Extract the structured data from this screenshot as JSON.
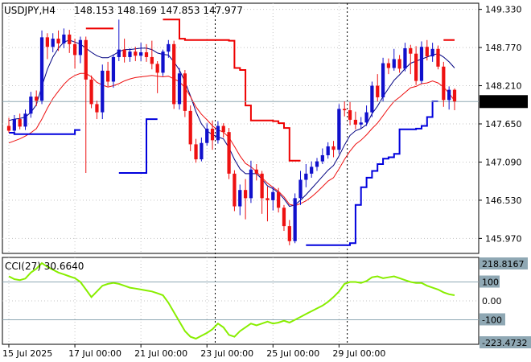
{
  "header": {
    "symbol": "USDJPY,H4",
    "ohlc": "148.153 148.169 147.853 147.977"
  },
  "indicator": {
    "label": "CCI(27) 30.6640"
  },
  "colors": {
    "bull": "#1010cc",
    "bear": "#ee1111",
    "ma_slow": "#000080",
    "ma_fast": "#ee1111",
    "stop_up": "#0000dd",
    "stop_down": "#ee0000",
    "cci": "#88ee00",
    "grid": "#c4c4c4",
    "level": "#8fa8b4",
    "current_price": "#000000"
  },
  "chart_data": [
    {
      "type": "candlestick",
      "symbol": "USDJPY",
      "timeframe": "H4",
      "ylim": [
        145.75,
        149.42
      ],
      "yticks": [
        "149.330",
        "148.770",
        "148.210",
        "147.650",
        "147.090",
        "146.530",
        "145.970"
      ],
      "xticks": [
        "15 Jul 2025",
        "17 Jul 00:00",
        "21 Jul 00:00",
        "23 Jul 00:00",
        "25 Jul 00:00",
        "29 Jul 00:00"
      ],
      "current_price": "147.977",
      "candles": [
        [
          147.62,
          147.55,
          147.74,
          147.52
        ],
        [
          147.55,
          147.72,
          147.78,
          147.5
        ],
        [
          147.72,
          147.61,
          147.8,
          147.57
        ],
        [
          147.61,
          147.8,
          147.86,
          147.56
        ],
        [
          147.8,
          148.05,
          148.12,
          147.74
        ],
        [
          148.05,
          147.99,
          148.14,
          147.91
        ],
        [
          147.99,
          148.92,
          149.02,
          147.94
        ],
        [
          148.92,
          148.78,
          148.98,
          148.6
        ],
        [
          148.78,
          148.9,
          148.98,
          148.7
        ],
        [
          148.9,
          148.83,
          149.02,
          148.72
        ],
        [
          148.83,
          148.96,
          149.05,
          148.76
        ],
        [
          148.96,
          148.82,
          149.03,
          148.69
        ],
        [
          148.82,
          148.66,
          148.9,
          148.46
        ],
        [
          148.66,
          148.88,
          148.93,
          148.54
        ],
        [
          148.88,
          148.3,
          148.93,
          146.93
        ],
        [
          148.3,
          147.94,
          148.36,
          147.88
        ],
        [
          147.94,
          147.82,
          147.99,
          147.72
        ],
        [
          147.82,
          148.43,
          148.52,
          147.72
        ],
        [
          148.43,
          148.27,
          148.56,
          148.2
        ],
        [
          148.27,
          148.63,
          148.67,
          148.18
        ],
        [
          148.63,
          148.74,
          149.18,
          148.57
        ],
        [
          148.74,
          148.63,
          148.9,
          148.55
        ],
        [
          148.63,
          148.71,
          148.76,
          148.56
        ],
        [
          148.71,
          148.65,
          148.78,
          148.57
        ],
        [
          148.65,
          148.7,
          148.84,
          148.57
        ],
        [
          148.7,
          148.63,
          148.82,
          148.56
        ],
        [
          148.63,
          148.53,
          148.87,
          148.45
        ],
        [
          148.53,
          148.4,
          148.57,
          148.1
        ],
        [
          148.4,
          148.71,
          148.74,
          148.35
        ],
        [
          148.71,
          148.82,
          148.88,
          148.62
        ],
        [
          148.82,
          147.94,
          148.87,
          147.87
        ],
        [
          147.94,
          148.39,
          148.47,
          147.86
        ],
        [
          148.39,
          147.84,
          148.44,
          147.75
        ],
        [
          147.84,
          147.35,
          147.92,
          147.25
        ],
        [
          147.35,
          147.13,
          147.43,
          147.08
        ],
        [
          147.13,
          147.37,
          147.45,
          147.1
        ],
        [
          147.37,
          147.58,
          147.66,
          147.33
        ],
        [
          147.58,
          147.41,
          147.7,
          147.27
        ],
        [
          147.41,
          147.62,
          147.69,
          147.36
        ],
        [
          147.62,
          147.53,
          147.66,
          147.45
        ],
        [
          147.53,
          146.92,
          147.59,
          146.84
        ],
        [
          146.92,
          146.44,
          146.97,
          146.37
        ],
        [
          146.44,
          146.68,
          146.76,
          146.31
        ],
        [
          146.68,
          146.56,
          146.84,
          146.25
        ],
        [
          146.56,
          146.98,
          147.11,
          146.49
        ],
        [
          146.98,
          146.92,
          147.06,
          146.82
        ],
        [
          146.92,
          146.56,
          146.96,
          146.33
        ],
        [
          146.56,
          146.53,
          146.73,
          146.22
        ],
        [
          146.53,
          146.65,
          146.73,
          146.38
        ],
        [
          146.65,
          146.42,
          146.71,
          146.35
        ],
        [
          146.42,
          146.15,
          146.46,
          146.08
        ],
        [
          146.15,
          145.93,
          146.24,
          145.87
        ],
        [
          145.93,
          146.56,
          146.63,
          145.9
        ],
        [
          146.56,
          146.83,
          146.96,
          146.46
        ],
        [
          146.83,
          146.92,
          147.06,
          146.72
        ],
        [
          146.92,
          147.02,
          147.1,
          146.86
        ],
        [
          147.02,
          147.1,
          147.15,
          146.96
        ],
        [
          147.1,
          147.19,
          147.29,
          147.06
        ],
        [
          147.19,
          147.32,
          147.38,
          147.14
        ],
        [
          147.32,
          147.27,
          147.4,
          147.16
        ],
        [
          147.27,
          147.87,
          147.94,
          147.21
        ],
        [
          147.87,
          147.85,
          147.98,
          147.76
        ],
        [
          147.85,
          147.71,
          147.97,
          147.63
        ],
        [
          147.71,
          147.64,
          147.83,
          147.57
        ],
        [
          147.64,
          147.67,
          147.75,
          147.58
        ],
        [
          147.67,
          147.82,
          147.92,
          147.62
        ],
        [
          147.82,
          148.21,
          148.27,
          147.75
        ],
        [
          148.21,
          148.04,
          148.38,
          147.98
        ],
        [
          148.04,
          148.54,
          148.62,
          147.98
        ],
        [
          148.54,
          148.47,
          148.61,
          148.38
        ],
        [
          148.47,
          148.6,
          148.75,
          148.43
        ],
        [
          148.6,
          148.46,
          148.66,
          148.4
        ],
        [
          148.46,
          148.76,
          148.84,
          148.42
        ],
        [
          148.76,
          148.68,
          148.81,
          148.38
        ],
        [
          148.68,
          148.28,
          148.79,
          148.22
        ],
        [
          148.28,
          148.78,
          148.86,
          148.24
        ],
        [
          148.78,
          148.64,
          148.88,
          148.58
        ],
        [
          148.64,
          148.75,
          148.84,
          148.56
        ],
        [
          148.75,
          148.49,
          148.8,
          148.45
        ],
        [
          148.49,
          148.0,
          148.56,
          147.9
        ],
        [
          148.0,
          148.15,
          148.2,
          147.86
        ],
        [
          148.15,
          147.98,
          148.17,
          147.85
        ]
      ],
      "ma_slow": [
        147.7,
        147.72,
        147.73,
        147.75,
        147.82,
        147.93,
        148.2,
        148.45,
        148.63,
        148.76,
        148.85,
        148.88,
        148.85,
        148.82,
        148.76,
        148.7,
        148.65,
        148.62,
        148.62,
        148.66,
        148.71,
        148.74,
        148.74,
        148.75,
        148.76,
        148.76,
        148.74,
        148.69,
        148.67,
        148.66,
        148.56,
        148.44,
        148.27,
        148.06,
        147.83,
        147.65,
        147.55,
        147.49,
        147.46,
        147.43,
        147.3,
        147.13,
        146.99,
        146.92,
        146.92,
        146.92,
        146.84,
        146.74,
        146.7,
        146.64,
        146.55,
        146.44,
        146.46,
        146.53,
        146.61,
        146.7,
        146.79,
        146.88,
        146.97,
        147.04,
        147.18,
        147.34,
        147.48,
        147.55,
        147.58,
        147.64,
        147.8,
        147.91,
        148.05,
        148.17,
        148.29,
        148.37,
        148.46,
        148.54,
        148.57,
        148.6,
        148.63,
        148.66,
        148.68,
        148.63,
        148.56,
        148.47
      ],
      "ma_fast": [
        147.37,
        147.4,
        147.43,
        147.47,
        147.52,
        147.58,
        147.72,
        147.88,
        148.02,
        148.13,
        148.23,
        148.31,
        148.36,
        148.39,
        148.39,
        148.34,
        148.26,
        148.22,
        148.19,
        148.21,
        148.24,
        148.28,
        148.31,
        148.33,
        148.34,
        148.35,
        148.36,
        148.35,
        148.34,
        148.35,
        148.31,
        148.27,
        148.18,
        148.05,
        147.9,
        147.79,
        147.71,
        147.62,
        147.56,
        147.53,
        147.45,
        147.32,
        147.18,
        147.07,
        147.02,
        146.95,
        146.86,
        146.78,
        146.72,
        146.66,
        146.58,
        146.47,
        146.45,
        146.48,
        146.52,
        146.58,
        146.65,
        146.73,
        146.81,
        146.86,
        146.99,
        147.13,
        147.25,
        147.35,
        147.41,
        147.49,
        147.58,
        147.66,
        147.77,
        147.88,
        147.98,
        148.04,
        148.11,
        148.18,
        148.2,
        148.24,
        148.25,
        148.28,
        148.25,
        148.19,
        148.1,
        147.99
      ]
    },
    {
      "type": "line",
      "name": "CCI(27)",
      "value_label": "30.6640",
      "ylim": [
        -230,
        230
      ],
      "yticks": [
        "218.8167",
        "100",
        "0.00",
        "-100",
        "-223.4732"
      ],
      "levels": [
        100,
        -100
      ],
      "values": [
        130,
        115,
        110,
        118,
        150,
        170,
        200,
        180,
        165,
        150,
        140,
        130,
        120,
        100,
        60,
        20,
        50,
        80,
        90,
        95,
        90,
        80,
        70,
        65,
        60,
        55,
        50,
        40,
        30,
        -10,
        -60,
        -110,
        -160,
        -190,
        -200,
        -185,
        -170,
        -150,
        -120,
        -140,
        -180,
        -190,
        -160,
        -140,
        -120,
        -130,
        -120,
        -110,
        -120,
        -115,
        -105,
        -115,
        -100,
        -85,
        -70,
        -55,
        -40,
        -25,
        -5,
        20,
        50,
        90,
        100,
        100,
        95,
        105,
        125,
        130,
        120,
        125,
        130,
        120,
        110,
        100,
        95,
        95,
        80,
        70,
        60,
        45,
        35,
        30
      ]
    }
  ]
}
